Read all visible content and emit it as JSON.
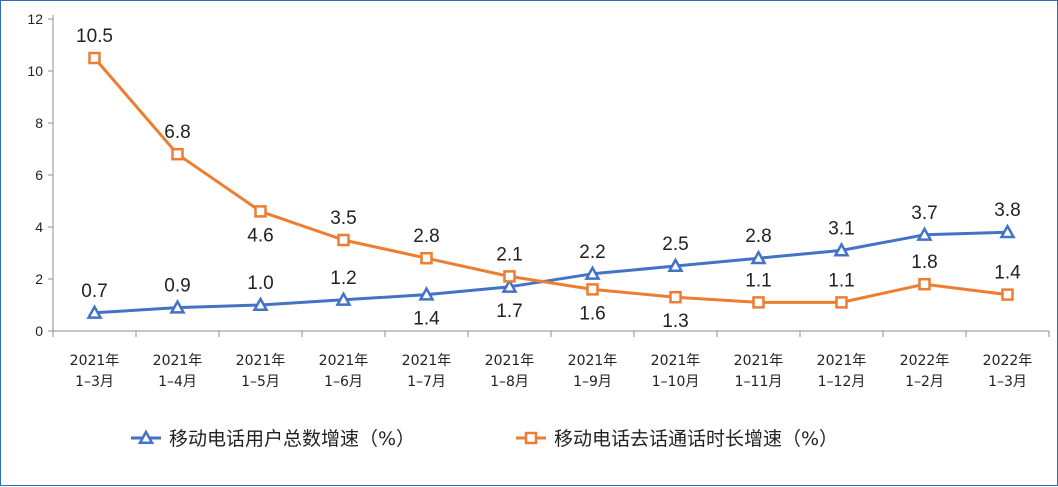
{
  "chart_data": {
    "type": "line",
    "categories": [
      [
        "2021年",
        "1–3月"
      ],
      [
        "2021年",
        "1–4月"
      ],
      [
        "2021年",
        "1–5月"
      ],
      [
        "2021年",
        "1–6月"
      ],
      [
        "2021年",
        "1–7月"
      ],
      [
        "2021年",
        "1–8月"
      ],
      [
        "2021年",
        "1–9月"
      ],
      [
        "2021年",
        "1–10月"
      ],
      [
        "2021年",
        "1–11月"
      ],
      [
        "2021年",
        "1–12月"
      ],
      [
        "2022年",
        "1–2月"
      ],
      [
        "2022年",
        "1–3月"
      ]
    ],
    "ylim": [
      0,
      12
    ],
    "yticks": [
      0,
      2,
      4,
      6,
      8,
      10,
      12
    ],
    "grid": false,
    "legend_position": "bottom",
    "series": [
      {
        "name": "移动电话用户总数增速（%）",
        "color": "#4472c4",
        "marker": "triangle",
        "values": [
          0.7,
          0.9,
          1.0,
          1.2,
          1.4,
          1.7,
          2.2,
          2.5,
          2.8,
          3.1,
          3.7,
          3.8
        ],
        "labels": [
          "0.7",
          "0.9",
          "1.0",
          "1.2",
          "1.4",
          "1.7",
          "2.2",
          "2.5",
          "2.8",
          "3.1",
          "3.7",
          "3.8"
        ]
      },
      {
        "name": "移动电话去话通话时长增速（%）",
        "color": "#ed7d31",
        "marker": "square",
        "values": [
          10.5,
          6.8,
          4.6,
          3.5,
          2.8,
          2.1,
          1.6,
          1.3,
          1.1,
          1.1,
          1.8,
          1.4
        ],
        "labels": [
          "10.5",
          "6.8",
          "4.6",
          "3.5",
          "2.8",
          "2.1",
          "1.6",
          "1.3",
          "1.1",
          "1.1",
          "1.8",
          "1.4"
        ]
      }
    ]
  }
}
